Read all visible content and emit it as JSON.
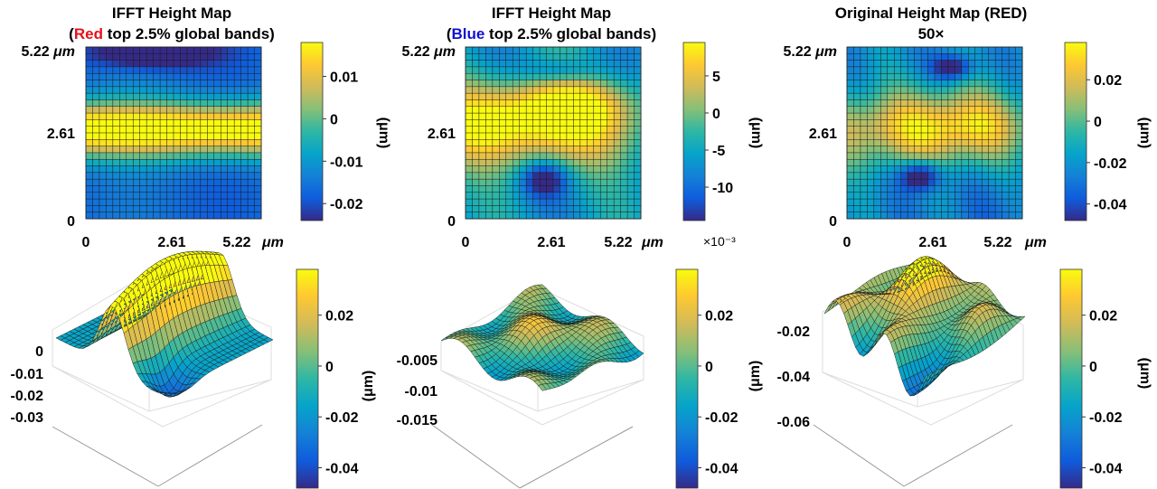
{
  "colors": {
    "red": "#e8101a",
    "blue": "#1010d0",
    "parula": [
      "#352a87",
      "#0f5cdd",
      "#1481d6",
      "#06a4ca",
      "#2eb7a4",
      "#87bf77",
      "#d1bb59",
      "#fec832",
      "#f9fb0e"
    ]
  },
  "chart_data": [
    {
      "type": "heatmap",
      "title": "IFFT Height Map",
      "subtitle": {
        "open": "(",
        "highlight": "Red",
        "rest": " top 2.5% global bands)"
      },
      "highlight_color": "#e8101a",
      "x_ticks": [
        "0",
        "2.61",
        "5.22"
      ],
      "y_ticks": [
        "0",
        "2.61",
        "5.22"
      ],
      "unit_label": "μm",
      "xlim": [
        0,
        5.22
      ],
      "ylim": [
        0,
        5.22
      ],
      "colorbar": {
        "ticks": [
          "-0.02",
          "-0.01",
          "0",
          "0.01"
        ],
        "values": [
          -0.02,
          -0.01,
          0,
          0.01
        ],
        "range": [
          -0.024,
          0.018
        ],
        "label": "(μm)",
        "exponent": ""
      }
    },
    {
      "type": "heatmap",
      "title": "IFFT Height Map",
      "subtitle": {
        "open": "(",
        "highlight": "Blue",
        "rest": " top 2.5% global bands)"
      },
      "highlight_color": "#1010d0",
      "x_ticks": [
        "0",
        "2.61",
        "5.22"
      ],
      "y_ticks": [
        "0",
        "2.61",
        "5.22"
      ],
      "unit_label": "μm",
      "xlim": [
        0,
        5.22
      ],
      "ylim": [
        0,
        5.22
      ],
      "colorbar": {
        "ticks": [
          "-10",
          "-5",
          "0",
          "5"
        ],
        "values": [
          -10,
          -5,
          0,
          5
        ],
        "range": [
          -14.5,
          9.5
        ],
        "label": "(μm)",
        "exponent": "×10⁻³"
      }
    },
    {
      "type": "heatmap",
      "title": "Original Height Map (RED)",
      "subtitle": {
        "open": "",
        "highlight": "",
        "rest": "50×"
      },
      "highlight_color": "#000000",
      "x_ticks": [
        "0",
        "2.61",
        "5.22"
      ],
      "y_ticks": [
        "0",
        "2.61",
        "5.22"
      ],
      "unit_label": "μm",
      "xlim": [
        0,
        5.22
      ],
      "ylim": [
        0,
        5.22
      ],
      "colorbar": {
        "ticks": [
          "-0.04",
          "-0.02",
          "0",
          "0.02"
        ],
        "values": [
          -0.04,
          -0.02,
          0,
          0.02
        ],
        "range": [
          -0.048,
          0.038
        ],
        "label": "(μm)",
        "exponent": ""
      }
    },
    {
      "type": "surface",
      "title": "",
      "z_ticks": [
        "0",
        "-0.01",
        "-0.02",
        "-0.03"
      ],
      "z_label": "",
      "colorbar": {
        "ticks": [
          "-0.04",
          "-0.02",
          "0",
          "0.02"
        ],
        "values": [
          -0.04,
          -0.02,
          0,
          0.02
        ],
        "range": [
          -0.048,
          0.038
        ],
        "label": ""
      }
    },
    {
      "type": "surface",
      "title": "",
      "z_ticks": [
        "-0.005",
        "-0.01",
        "-0.015"
      ],
      "z_label": "(μm)",
      "colorbar": {
        "ticks": [
          "-0.04",
          "-0.02",
          "0",
          "0.02"
        ],
        "values": [
          -0.04,
          -0.02,
          0,
          0.02
        ],
        "range": [
          -0.048,
          0.038
        ],
        "label": ""
      }
    },
    {
      "type": "surface",
      "title": "",
      "z_ticks": [
        "-0.02",
        "-0.04",
        "-0.06"
      ],
      "z_label": "(μm)",
      "colorbar": {
        "ticks": [
          "-0.04",
          "-0.02",
          "0",
          "0.02"
        ],
        "values": [
          -0.04,
          -0.02,
          0,
          0.02
        ],
        "range": [
          -0.048,
          0.038
        ],
        "label": "(μm)"
      }
    }
  ]
}
